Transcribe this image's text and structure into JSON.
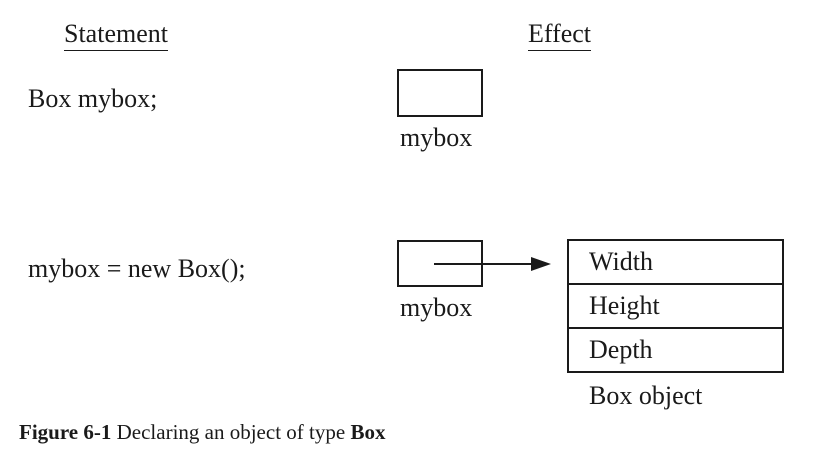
{
  "headers": {
    "statement": "Statement",
    "effect": "Effect"
  },
  "rows": [
    {
      "statement": "Box mybox;",
      "reference_label": "mybox"
    },
    {
      "statement": "mybox = new Box();",
      "reference_label": "mybox",
      "object": {
        "fields": [
          "Width",
          "Height",
          "Depth"
        ],
        "label": "Box object"
      }
    }
  ],
  "caption": {
    "figure_number": "Figure 6-1",
    "text": " Declaring an object of type ",
    "type_name": "Box"
  }
}
